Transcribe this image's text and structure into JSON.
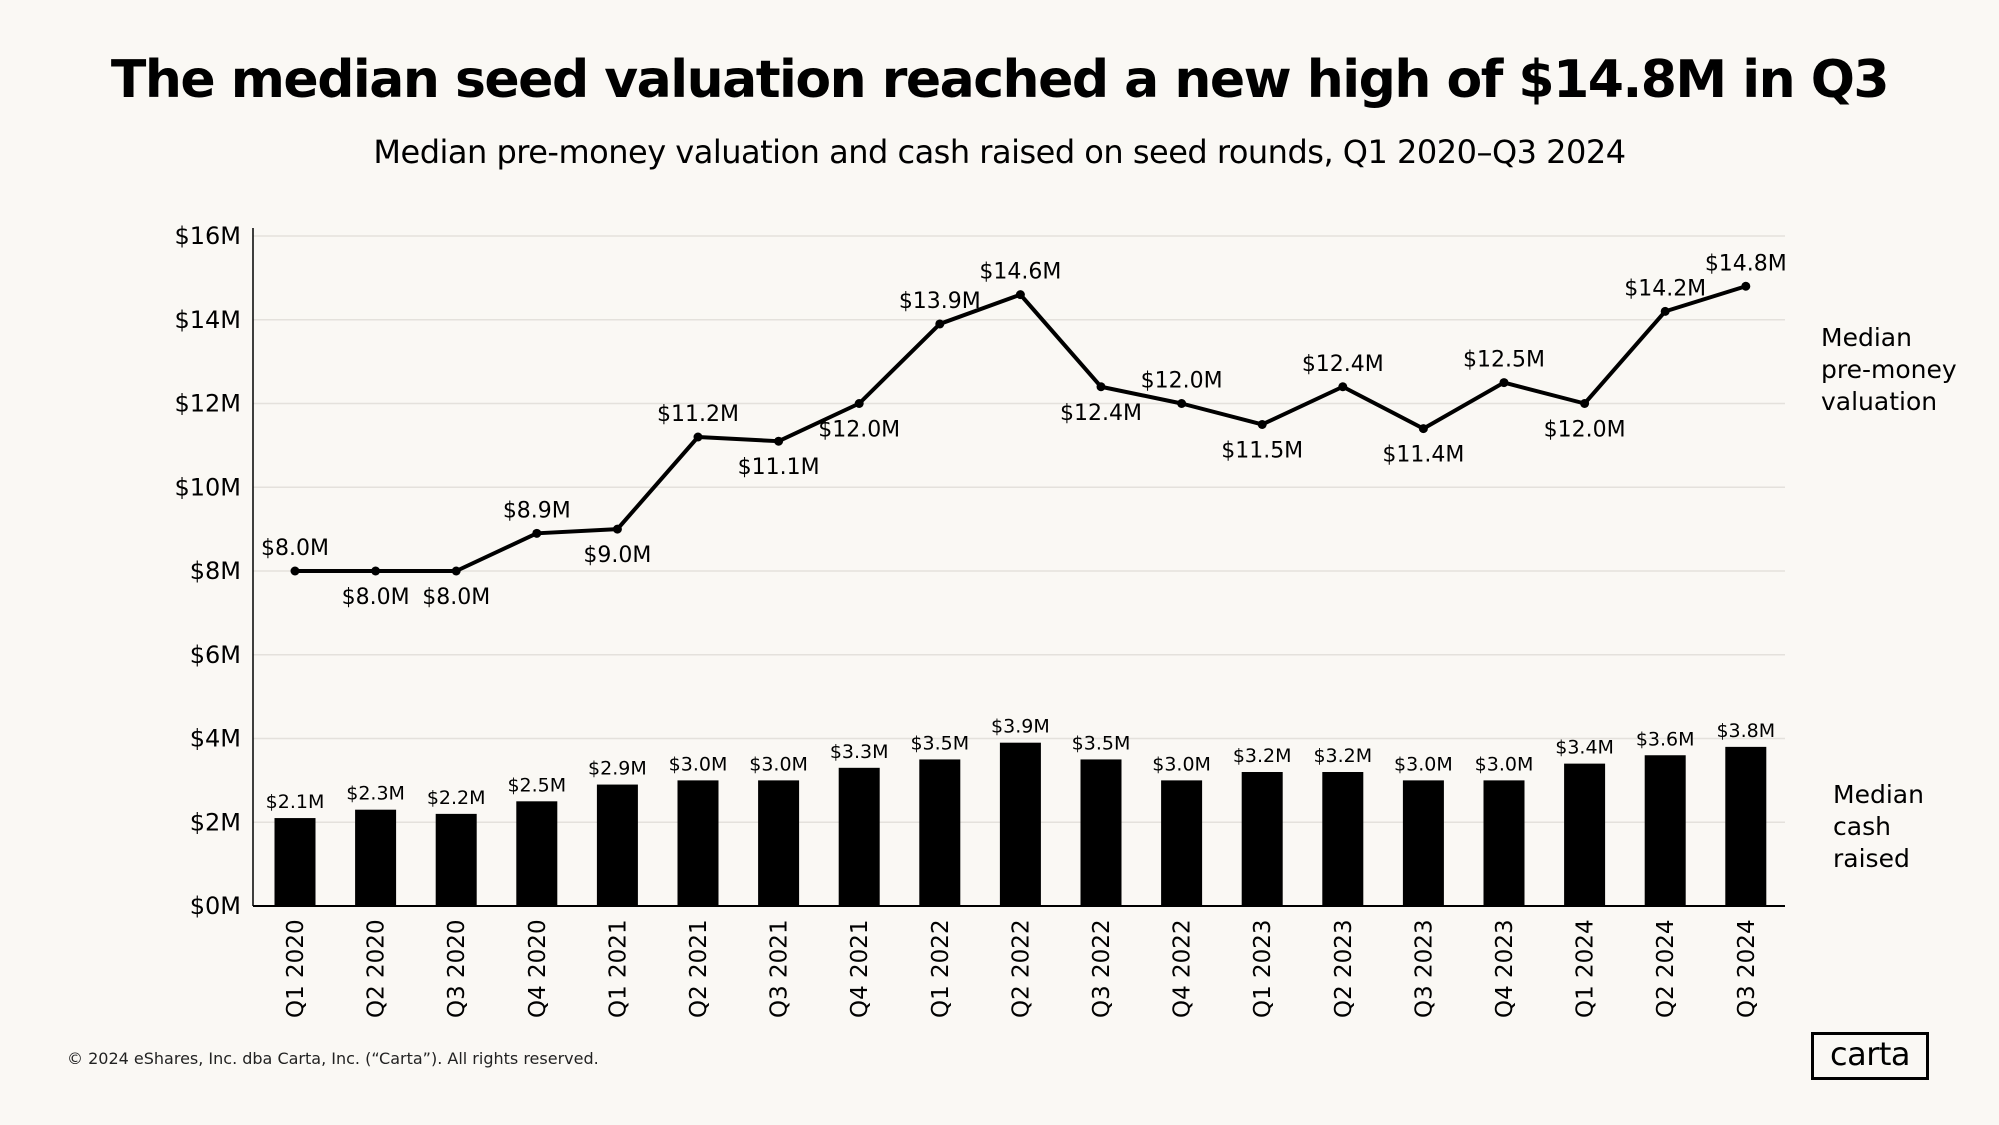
{
  "chart_data": {
    "type": "bar+line",
    "title": "The median seed valuation reached a new high of $14.8M in Q3",
    "subtitle": "Median pre-money valuation and cash raised on seed rounds, Q1 2020–Q3 2024",
    "categories": [
      "Q1 2020",
      "Q2 2020",
      "Q3 2020",
      "Q4 2020",
      "Q1 2021",
      "Q2 2021",
      "Q3 2021",
      "Q4 2021",
      "Q1 2022",
      "Q2 2022",
      "Q3 2022",
      "Q4 2022",
      "Q1 2023",
      "Q2 2023",
      "Q3 2023",
      "Q4 2023",
      "Q1 2024",
      "Q2 2024",
      "Q3 2024"
    ],
    "series": [
      {
        "name": "Median pre-money valuation",
        "name_lines": [
          "Median",
          "pre-money",
          "valuation"
        ],
        "type": "line",
        "values": [
          8.0,
          8.0,
          8.0,
          8.9,
          9.0,
          11.2,
          11.1,
          12.0,
          13.9,
          14.6,
          12.4,
          12.0,
          11.5,
          12.4,
          11.4,
          12.5,
          12.0,
          14.2,
          14.8
        ],
        "labels": [
          "$8.0M",
          "$8.0M",
          "$8.0M",
          "$8.9M",
          "$9.0M",
          "$11.2M",
          "$11.1M",
          "$12.0M",
          "$13.9M",
          "$14.6M",
          "$12.4M",
          "$12.0M",
          "$11.5M",
          "$12.4M",
          "$11.4M",
          "$12.5M",
          "$12.0M",
          "$14.2M",
          "$14.8M"
        ],
        "label_position": [
          "above",
          "below",
          "below",
          "above",
          "below",
          "above",
          "below",
          "below",
          "above",
          "above",
          "below",
          "above",
          "below",
          "above",
          "below",
          "above",
          "below",
          "above",
          "above"
        ]
      },
      {
        "name": "Median cash raised",
        "name_lines": [
          "Median",
          "cash",
          "raised"
        ],
        "type": "bar",
        "values": [
          2.1,
          2.3,
          2.2,
          2.5,
          2.9,
          3.0,
          3.0,
          3.3,
          3.5,
          3.9,
          3.5,
          3.0,
          3.2,
          3.2,
          3.0,
          3.0,
          3.4,
          3.6,
          3.8
        ],
        "labels": [
          "$2.1M",
          "$2.3M",
          "$2.2M",
          "$2.5M",
          "$2.9M",
          "$3.0M",
          "$3.0M",
          "$3.3M",
          "$3.5M",
          "$3.9M",
          "$3.5M",
          "$3.0M",
          "$3.2M",
          "$3.2M",
          "$3.0M",
          "$3.0M",
          "$3.4M",
          "$3.6M",
          "$3.8M"
        ]
      }
    ],
    "ylim": [
      0,
      16
    ],
    "y_ticks": [
      0,
      2,
      4,
      6,
      8,
      10,
      12,
      14,
      16
    ],
    "y_tick_labels": [
      "$0M",
      "$2M",
      "$4M",
      "$6M",
      "$8M",
      "$10M",
      "$12M",
      "$14M",
      "$16M"
    ],
    "grid": true,
    "xlabel": "",
    "ylabel": ""
  },
  "footer": "© 2024 eShares, Inc. dba Carta, Inc. (“Carta”). All rights reserved.",
  "logo": "carta",
  "colors": {
    "background": "#faf8f4",
    "ink": "#000000",
    "grid": "#e4e1dc"
  }
}
